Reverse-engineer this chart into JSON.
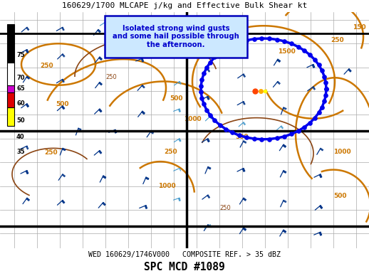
{
  "title_top": "160629/1700 MLCAPE j/kg and Effective Bulk Shear kt",
  "title_bottom": "SPC MCD #1089",
  "footer_text": "WED 160629/1746V000   COMPOSITE REF. > 35 dBZ",
  "annotation_text": "Isolated strong wind gusts\nand some hail possible through\nthe afternoon.",
  "fig_bg": "#ffffff",
  "map_bg": "#dcdcdc",
  "title_color": "#000000",
  "annotation_box_bg": "#cce8ff",
  "annotation_box_edge": "#0000bb",
  "annotation_text_color": "#0000cc",
  "orange_color": "#cc7700",
  "brown_color": "#8b4513",
  "dark_blue_barb": "#003388",
  "light_blue_barb": "#4499cc",
  "mcd_color": "#0000ee",
  "state_line_color": "#aaaaaa",
  "bold_line_color": "#000000"
}
